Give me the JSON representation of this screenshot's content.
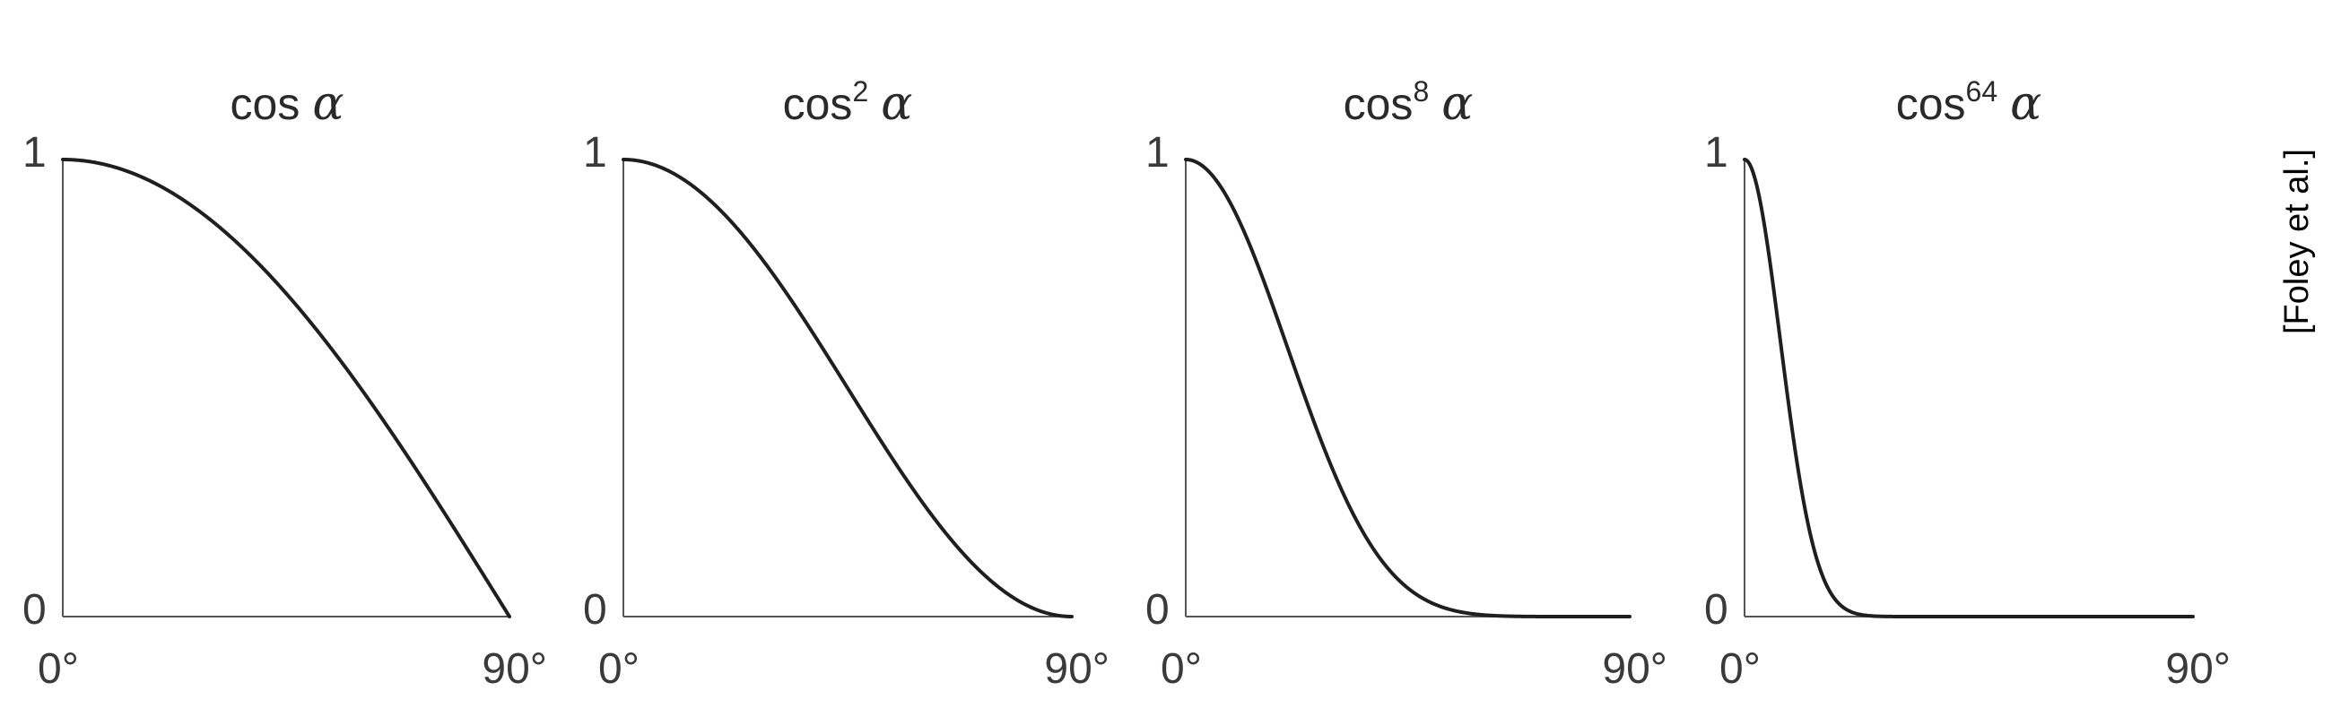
{
  "chart_data": [
    {
      "type": "line",
      "title": {
        "base": "cos",
        "exponent": "",
        "variable": "α"
      },
      "power": 1,
      "x": [
        0,
        10,
        20,
        30,
        40,
        50,
        60,
        70,
        80,
        90
      ],
      "y": [
        1.0,
        0.985,
        0.94,
        0.866,
        0.766,
        0.643,
        0.5,
        0.342,
        0.174,
        0.0
      ],
      "x_unit": "degrees",
      "xlim": [
        0,
        90
      ],
      "ylim": [
        0,
        1
      ],
      "x_ticks": [
        "0°",
        "90°"
      ],
      "y_ticks": [
        "0",
        "1"
      ],
      "grid": false
    },
    {
      "type": "line",
      "title": {
        "base": "cos",
        "exponent": "2",
        "variable": "α"
      },
      "power": 2,
      "x": [
        0,
        10,
        20,
        30,
        40,
        50,
        60,
        70,
        80,
        90
      ],
      "y": [
        1.0,
        0.97,
        0.883,
        0.75,
        0.587,
        0.413,
        0.25,
        0.117,
        0.03,
        0.0
      ],
      "x_unit": "degrees",
      "xlim": [
        0,
        90
      ],
      "ylim": [
        0,
        1
      ],
      "x_ticks": [
        "0°",
        "90°"
      ],
      "y_ticks": [
        "0",
        "1"
      ],
      "grid": false
    },
    {
      "type": "line",
      "title": {
        "base": "cos",
        "exponent": "8",
        "variable": "α"
      },
      "power": 8,
      "x": [
        0,
        10,
        20,
        30,
        40,
        50,
        60,
        70,
        80,
        90
      ],
      "y": [
        1.0,
        0.886,
        0.609,
        0.316,
        0.119,
        0.029,
        0.004,
        0.0,
        0.0,
        0.0
      ],
      "x_unit": "degrees",
      "xlim": [
        0,
        90
      ],
      "ylim": [
        0,
        1
      ],
      "x_ticks": [
        "0°",
        "90°"
      ],
      "y_ticks": [
        "0",
        "1"
      ],
      "grid": false
    },
    {
      "type": "line",
      "title": {
        "base": "cos",
        "exponent": "64",
        "variable": "α"
      },
      "power": 64,
      "x": [
        0,
        5,
        10,
        15,
        20,
        25,
        30,
        90
      ],
      "y": [
        1.0,
        0.784,
        0.378,
        0.108,
        0.019,
        0.002,
        0.0,
        0.0
      ],
      "x_unit": "degrees",
      "xlim": [
        0,
        90
      ],
      "ylim": [
        0,
        1
      ],
      "x_ticks": [
        "0°",
        "90°"
      ],
      "y_ticks": [
        "0",
        "1"
      ],
      "grid": false
    }
  ],
  "source_label": "[Foley et al.]"
}
